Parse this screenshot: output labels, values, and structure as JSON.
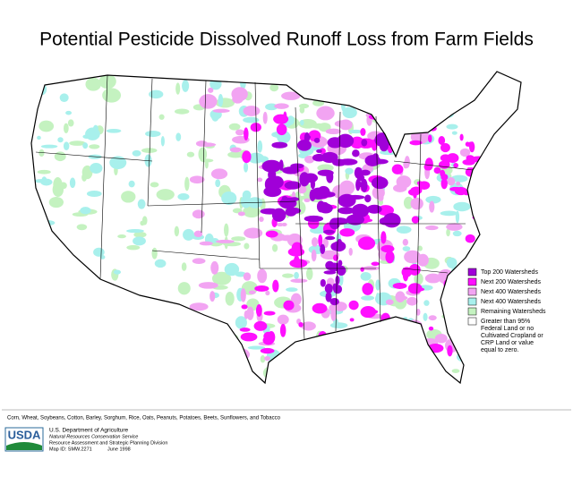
{
  "title": "Potential Pesticide Dissolved Runoff Loss from Farm Fields",
  "legend": {
    "items": [
      {
        "label": "Top 200 Watersheds",
        "color": "#a000d8"
      },
      {
        "label": "Next 200 Watersheds",
        "color": "#ff10ff"
      },
      {
        "label": "Next 400 Watersheds",
        "color": "#f2a4f2"
      },
      {
        "label": "Next 400 Watersheds",
        "color": "#a8f0ec"
      },
      {
        "label": "Remaining Watersheds",
        "color": "#c4f2c0"
      },
      {
        "label": "Greater than 95% Federal Land or no Cultivated Cropland or CRP Land or value equal to zero.",
        "color": "#ffffff"
      }
    ]
  },
  "crops_note": "Corn, Wheat, Soybeans, Cotton, Barley, Sorghum, Rice, Oats, Peanuts, Potatoes, Beets, Sunflowers, and Tobacco",
  "footer": {
    "logo": "USDA",
    "lines": [
      "U.S. Department of Agriculture",
      "Natural Resources Conservation Service",
      "Resource Assessment and Strategic Planning Division"
    ],
    "map_id": "Map ID: SMW.2271",
    "date": "June 1998"
  }
}
